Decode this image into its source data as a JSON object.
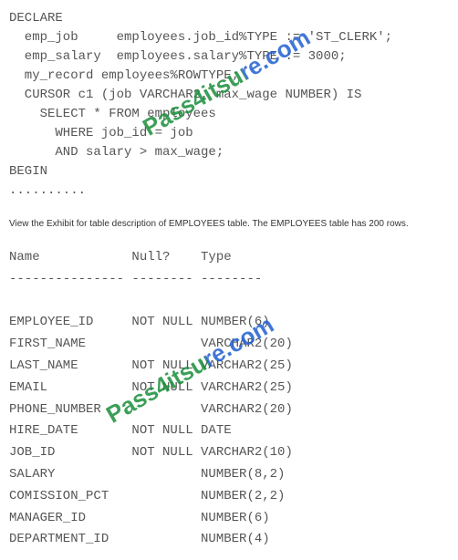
{
  "code": {
    "line1": "DECLARE",
    "line2": "  emp_job     employees.job_id%TYPE := 'ST_CLERK';",
    "line3": "  emp_salary  employees.salary%TYPE := 3000;",
    "line4": "  my_record employees%ROWTYPE;",
    "line5": "  CURSOR c1 (job VARCHAR2, max_wage NUMBER) IS",
    "line6": "    SELECT * FROM employees",
    "line7": "      WHERE job_id = job",
    "line8": "      AND salary > max_wage;",
    "line9": "BEGIN",
    "line10": ".........."
  },
  "description_text": "View the Exhibit for table description of EMPLOYEES table. The EMPLOYEES table has 200 rows.",
  "table": {
    "header_name": "Name",
    "header_null": "Null?",
    "header_type": "Type",
    "sep_name": "---------------",
    "sep_null": "--------",
    "sep_type": "--------",
    "rows": [
      {
        "name": "EMPLOYEE_ID",
        "nullcol": "NOT NULL",
        "type": "NUMBER(6)"
      },
      {
        "name": "FIRST_NAME",
        "nullcol": "",
        "type": "VARCHAR2(20)"
      },
      {
        "name": "LAST_NAME",
        "nullcol": "NOT NULL",
        "type": "VARCHAR2(25)"
      },
      {
        "name": "EMAIL",
        "nullcol": "NOT NULL",
        "type": "VARCHAR2(25)"
      },
      {
        "name": "PHONE_NUMBER",
        "nullcol": "",
        "type": "VARCHAR2(20)"
      },
      {
        "name": "HIRE_DATE",
        "nullcol": "NOT NULL",
        "type": "DATE"
      },
      {
        "name": "JOB_ID",
        "nullcol": "NOT NULL",
        "type": "VARCHAR2(10)"
      },
      {
        "name": "SALARY",
        "nullcol": "",
        "type": "NUMBER(8,2)"
      },
      {
        "name": "COMISSION_PCT",
        "nullcol": "",
        "type": "NUMBER(2,2)"
      },
      {
        "name": "MANAGER_ID",
        "nullcol": "",
        "type": "NUMBER(6)"
      },
      {
        "name": "DEPARTMENT_ID",
        "nullcol": "",
        "type": "NUMBER(4)"
      }
    ]
  },
  "watermark_text": "Pass4itsure.com",
  "colors": {
    "text": "#555555",
    "description": "#333333",
    "watermark_green": "#1a8f3a",
    "watermark_blue": "#2060d0",
    "background": "#ffffff"
  },
  "layout": {
    "col1_width": 16,
    "col2_width": 9
  }
}
